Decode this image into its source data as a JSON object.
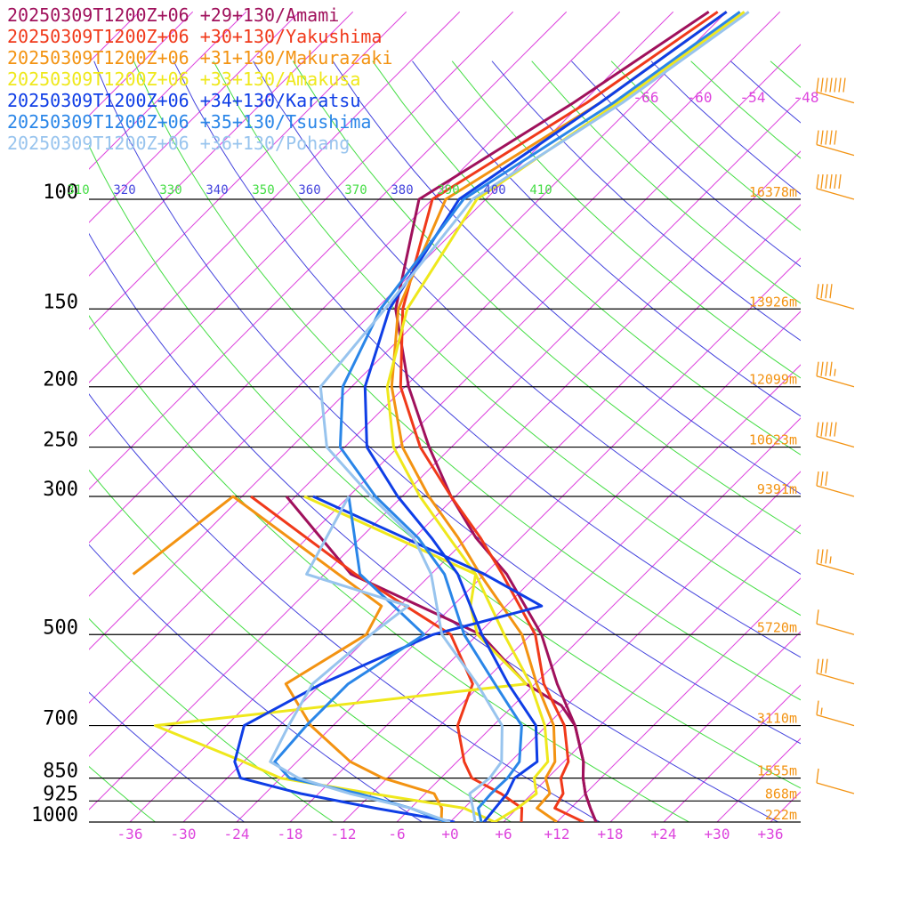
{
  "legend": [
    {
      "label": "20250309T1200Z+06 +29+130/Amami",
      "color": "#a0115c"
    },
    {
      "label": "20250309T1200Z+06 +30+130/Yakushima",
      "color": "#f0391a"
    },
    {
      "label": "20250309T1200Z+06 +31+130/Makurazaki",
      "color": "#f39312"
    },
    {
      "label": "20250309T1200Z+06 +33+130/Amakusa",
      "color": "#efe81c"
    },
    {
      "label": "20250309T1200Z+06 +34+130/Karatsu",
      "color": "#0f3ee6"
    },
    {
      "label": "20250309T1200Z+06 +35+130/Tsushima",
      "color": "#2a86e8"
    },
    {
      "label": "20250309T1200Z+06 +36+130/Pohang",
      "color": "#98c4ee"
    }
  ],
  "chart_data": {
    "type": "line",
    "subtype": "skew-t log-p sounding",
    "y_axis": {
      "quantity": "pressure (hPa)",
      "scale": "log",
      "range": [
        1000,
        100
      ],
      "levels": [
        100,
        150,
        200,
        250,
        300,
        500,
        700,
        850,
        925,
        1000
      ],
      "tick_labels": [
        "100",
        "150",
        "200",
        "250",
        "300",
        "500",
        "700",
        "850",
        "925",
        "1000"
      ]
    },
    "x_axis": {
      "quantity": "temperature (°C) at 1000 hPa, skewed",
      "range": [
        -40,
        40
      ],
      "tick_labels": [
        "-36",
        "-30",
        "-24",
        "-18",
        "-12",
        "-6",
        "+0",
        "+6",
        "+12",
        "+18",
        "+24",
        "+30",
        "+36"
      ],
      "tick_values": [
        -36,
        -30,
        -24,
        -18,
        -12,
        -6,
        0,
        6,
        12,
        18,
        24,
        30,
        36
      ]
    },
    "upper_temperature_labels": [
      "-66",
      "-60",
      "-54",
      "-48"
    ],
    "upper_temperature_values": [
      -66,
      -60,
      -54,
      -48
    ],
    "theta_labels": [
      "310",
      "320",
      "330",
      "340",
      "350",
      "360",
      "370",
      "380",
      "390",
      "400",
      "410"
    ],
    "height_labels": [
      {
        "p": 100,
        "text": "16378m"
      },
      {
        "p": 150,
        "text": "13926m"
      },
      {
        "p": 200,
        "text": "12099m"
      },
      {
        "p": 250,
        "text": "10623m"
      },
      {
        "p": 300,
        "text": "9391m"
      },
      {
        "p": 500,
        "text": "5720m"
      },
      {
        "p": 700,
        "text": "3110m"
      },
      {
        "p": 850,
        "text": "1555m"
      },
      {
        "p": 925,
        "text": "868m"
      },
      {
        "p": 1000,
        "text": "222m"
      }
    ],
    "colors": {
      "isotherm": "#dd44dd",
      "dry_adiabat_a": "#4444dd",
      "dry_adiabat_b": "#44dd44",
      "isobar": "#000000",
      "height": "#f39312",
      "wind": "#f39312",
      "tick": "#dd44dd",
      "pressure_label": "#000000"
    },
    "wind_barbs": [
      {
        "p": 70,
        "speed_kt": 70
      },
      {
        "p": 85,
        "speed_kt": 50
      },
      {
        "p": 100,
        "speed_kt": 60
      },
      {
        "p": 150,
        "speed_kt": 40
      },
      {
        "p": 200,
        "speed_kt": 45
      },
      {
        "p": 250,
        "speed_kt": 50
      },
      {
        "p": 300,
        "speed_kt": 30
      },
      {
        "p": 400,
        "speed_kt": 35
      },
      {
        "p": 500,
        "speed_kt": 10
      },
      {
        "p": 600,
        "speed_kt": 30
      },
      {
        "p": 700,
        "speed_kt": 15
      },
      {
        "p": 900,
        "speed_kt": 10
      }
    ],
    "series": [
      {
        "name": "20250309T1200Z+06 +29+130/Amami",
        "temperature": [
          [
            1000,
            16.4
          ],
          [
            950,
            14.2
          ],
          [
            900,
            12.0
          ],
          [
            850,
            10.0
          ],
          [
            800,
            8.2
          ],
          [
            700,
            3.2
          ],
          [
            600,
            -3.5
          ],
          [
            500,
            -10.8
          ],
          [
            400,
            -21.5
          ],
          [
            350,
            -29.0
          ],
          [
            300,
            -36.5
          ],
          [
            250,
            -44.5
          ],
          [
            200,
            -53.6
          ],
          [
            150,
            -63.8
          ],
          [
            100,
            -73.5
          ],
          [
            70,
            -67.0
          ],
          [
            50,
            -62.0
          ]
        ],
        "dewpoint": [
          [
            1000,
            16.4
          ],
          [
            950,
            14.2
          ],
          [
            900,
            12.0
          ],
          [
            850,
            10.0
          ],
          [
            800,
            8.2
          ],
          [
            700,
            3.2
          ],
          [
            650,
            -0.6
          ],
          [
            600,
            -7.0
          ],
          [
            500,
            -17.6
          ],
          [
            400,
            -39.0
          ],
          [
            300,
            -55.0
          ]
        ]
      },
      {
        "name": "20250309T1200Z+06 +30+130/Yakushima",
        "temperature": [
          [
            1000,
            15.0
          ],
          [
            950,
            10.2
          ],
          [
            900,
            9.5
          ],
          [
            850,
            7.5
          ],
          [
            800,
            6.5
          ],
          [
            700,
            2.0
          ],
          [
            600,
            -5.0
          ],
          [
            500,
            -11.5
          ],
          [
            400,
            -22.0
          ],
          [
            350,
            -28.5
          ],
          [
            300,
            -36.5
          ],
          [
            250,
            -45.5
          ],
          [
            200,
            -54.5
          ],
          [
            150,
            -63.0
          ],
          [
            100,
            -72.0
          ],
          [
            70,
            -65.5
          ],
          [
            50,
            -61.0
          ]
        ],
        "dewpoint": [
          [
            1000,
            8.0
          ],
          [
            950,
            6.5
          ],
          [
            900,
            2.5
          ],
          [
            850,
            -2.5
          ],
          [
            800,
            -5.2
          ],
          [
            700,
            -10.0
          ],
          [
            600,
            -13.0
          ],
          [
            500,
            -21.0
          ],
          [
            400,
            -38.5
          ],
          [
            300,
            -59.0
          ]
        ]
      },
      {
        "name": "20250309T1200Z+06 +31+130/Makurazaki",
        "temperature": [
          [
            1000,
            12.0
          ],
          [
            950,
            8.2
          ],
          [
            900,
            8.0
          ],
          [
            850,
            5.8
          ],
          [
            800,
            5.0
          ],
          [
            700,
            0.8
          ],
          [
            600,
            -5.8
          ],
          [
            500,
            -13.0
          ],
          [
            400,
            -24.5
          ],
          [
            350,
            -31.0
          ],
          [
            300,
            -39.0
          ],
          [
            250,
            -47.5
          ],
          [
            200,
            -55.5
          ],
          [
            150,
            -63.5
          ],
          [
            100,
            -70.5
          ],
          [
            70,
            -64.0
          ],
          [
            50,
            -60.0
          ]
        ],
        "dewpoint": [
          [
            1000,
            -1.0
          ],
          [
            950,
            -2.5
          ],
          [
            900,
            -5.0
          ],
          [
            850,
            -12.5
          ],
          [
            800,
            -18.0
          ],
          [
            700,
            -26.5
          ],
          [
            600,
            -34.0
          ],
          [
            500,
            -30.5
          ],
          [
            450,
            -32.0
          ],
          [
            300,
            -61.0
          ],
          [
            400,
            -63.5
          ]
        ]
      },
      {
        "name": "20250309T1200Z+06 +33+130/Amakusa",
        "temperature": [
          [
            1000,
            5.0
          ],
          [
            950,
            6.0
          ],
          [
            900,
            6.5
          ],
          [
            850,
            4.5
          ],
          [
            800,
            4.2
          ],
          [
            700,
            -0.2
          ],
          [
            600,
            -6.5
          ],
          [
            500,
            -15.0
          ],
          [
            400,
            -25.0
          ],
          [
            350,
            -32.0
          ],
          [
            300,
            -40.0
          ],
          [
            250,
            -48.5
          ],
          [
            200,
            -56.0
          ],
          [
            150,
            -62.5
          ],
          [
            100,
            -67.0
          ],
          [
            70,
            -62.0
          ],
          [
            50,
            -58.0
          ]
        ],
        "dewpoint": [
          [
            1000,
            5.0
          ],
          [
            950,
            0.0
          ],
          [
            900,
            -12.0
          ],
          [
            850,
            -24.0
          ],
          [
            800,
            -30.0
          ],
          [
            700,
            -44.0
          ],
          [
            600,
            -7.0
          ],
          [
            500,
            -18.0
          ],
          [
            450,
            -22.0
          ],
          [
            400,
            -25.0
          ],
          [
            300,
            -53.0
          ]
        ]
      },
      {
        "name": "20250309T1200Z+06 +34+130/Karatsu",
        "temperature": [
          [
            1000,
            3.8
          ],
          [
            950,
            3.5
          ],
          [
            900,
            3.2
          ],
          [
            850,
            2.3
          ],
          [
            800,
            3.0
          ],
          [
            700,
            -1.2
          ],
          [
            600,
            -9.0
          ],
          [
            500,
            -17.5
          ],
          [
            400,
            -27.0
          ],
          [
            350,
            -34.0
          ],
          [
            300,
            -42.5
          ],
          [
            250,
            -51.5
          ],
          [
            200,
            -58.5
          ],
          [
            150,
            -64.5
          ],
          [
            100,
            -69.0
          ],
          [
            70,
            -64.0
          ],
          [
            50,
            -60.0
          ]
        ],
        "dewpoint": [
          [
            1000,
            0.5
          ],
          [
            950,
            -10.0
          ],
          [
            900,
            -20.0
          ],
          [
            850,
            -28.5
          ],
          [
            800,
            -31.0
          ],
          [
            700,
            -34.0
          ],
          [
            600,
            -30.0
          ],
          [
            500,
            -23.0
          ],
          [
            450,
            -14.0
          ],
          [
            400,
            -24.0
          ],
          [
            300,
            -52.0
          ]
        ]
      },
      {
        "name": "20250309T1200Z+06 +35+130/Tsushima",
        "temperature": [
          [
            1000,
            3.5
          ],
          [
            950,
            1.6
          ],
          [
            900,
            1.4
          ],
          [
            850,
            1.5
          ],
          [
            800,
            1.0
          ],
          [
            700,
            -2.8
          ],
          [
            600,
            -10.5
          ],
          [
            500,
            -19.5
          ],
          [
            400,
            -28.5
          ],
          [
            350,
            -35.5
          ],
          [
            300,
            -45.0
          ],
          [
            250,
            -54.5
          ],
          [
            200,
            -61.0
          ],
          [
            150,
            -65.5
          ],
          [
            100,
            -68.5
          ],
          [
            70,
            -62.5
          ],
          [
            50,
            -58.5
          ]
        ],
        "dewpoint": [
          [
            1000,
            -0.5
          ],
          [
            950,
            -6.0
          ],
          [
            900,
            -13.5
          ],
          [
            850,
            -23.0
          ],
          [
            800,
            -26.5
          ],
          [
            700,
            -27.0
          ],
          [
            600,
            -27.0
          ],
          [
            500,
            -24.0
          ],
          [
            400,
            -38.0
          ],
          [
            300,
            -48.0
          ]
        ]
      },
      {
        "name": "20250309T1200Z+06 +36+130/Pohang",
        "temperature": [
          [
            1000,
            2.8
          ],
          [
            950,
            1.0
          ],
          [
            900,
            -1.0
          ],
          [
            850,
            -0.5
          ],
          [
            800,
            -1.0
          ],
          [
            700,
            -5.0
          ],
          [
            600,
            -12.5
          ],
          [
            500,
            -22.0
          ],
          [
            400,
            -30.0
          ],
          [
            350,
            -36.0
          ],
          [
            300,
            -45.5
          ],
          [
            250,
            -56.0
          ],
          [
            200,
            -63.5
          ],
          [
            150,
            -65.0
          ],
          [
            100,
            -67.5
          ],
          [
            70,
            -61.5
          ],
          [
            50,
            -57.5
          ]
        ],
        "dewpoint": [
          [
            1000,
            0.0
          ],
          [
            950,
            -6.0
          ],
          [
            900,
            -14.5
          ],
          [
            850,
            -22.0
          ],
          [
            800,
            -27.0
          ],
          [
            700,
            -29.0
          ],
          [
            600,
            -31.0
          ],
          [
            500,
            -30.0
          ],
          [
            450,
            -29.0
          ],
          [
            400,
            -44.0
          ],
          [
            300,
            -48.0
          ]
        ]
      }
    ]
  }
}
